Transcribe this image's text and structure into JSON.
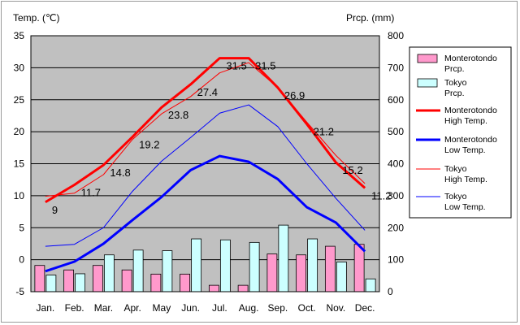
{
  "chart_data": {
    "type": "bar+line",
    "categories": [
      "Jan.",
      "Feb.",
      "Mar.",
      "Apr.",
      "May",
      "Jun.",
      "Jul.",
      "Aug.",
      "Sep.",
      "Oct.",
      "Nov.",
      "Dec."
    ],
    "ylabel_left": "Temp. (℃)",
    "ylabel_right": "Prcp. (mm)",
    "ylim_left": [
      -5,
      35
    ],
    "ylim_right": [
      0,
      800
    ],
    "yticks_left": [
      35,
      30,
      25,
      20,
      15,
      10,
      5,
      0,
      -5
    ],
    "yticks_right": [
      800,
      700,
      600,
      500,
      400,
      300,
      200,
      100,
      0
    ],
    "grid": true,
    "bars": [
      {
        "name": "Monterotondo Prcp.",
        "color": "#ff99cc",
        "values": [
          82,
          68,
          82,
          68,
          55,
          55,
          20,
          20,
          118,
          115,
          142,
          148
        ]
      },
      {
        "name": "Tokyo Prcp.",
        "color": "#ccffff",
        "values": [
          52,
          56,
          115,
          130,
          128,
          165,
          162,
          154,
          208,
          165,
          93,
          40
        ]
      }
    ],
    "lines": [
      {
        "name": "Monterotondo High Temp.",
        "color": "#ff0000",
        "width": 3,
        "values": [
          9,
          11.7,
          14.8,
          19.2,
          23.8,
          27.4,
          31.5,
          31.5,
          26.9,
          21.2,
          15.2,
          11.2
        ]
      },
      {
        "name": "Monterotondo Low Temp.",
        "color": "#0000ff",
        "width": 3,
        "values": [
          -1.8,
          -0.3,
          2.5,
          6.2,
          9.8,
          14,
          16.2,
          15.3,
          12.6,
          8.2,
          5.8,
          1.3
        ]
      },
      {
        "name": "Tokyo High Temp.",
        "color": "#ff0000",
        "width": 1,
        "values": [
          9.9,
          10.4,
          13.3,
          18.8,
          22.8,
          25.5,
          29.2,
          30.8,
          26.9,
          21.5,
          16.3,
          11.9
        ]
      },
      {
        "name": "Tokyo Low Temp.",
        "color": "#0000ff",
        "width": 1,
        "values": [
          2.1,
          2.4,
          5,
          10.7,
          15.4,
          19.1,
          22.9,
          24.2,
          20.8,
          15,
          9.6,
          4.6
        ]
      }
    ],
    "data_labels": {
      "series": "Monterotondo High Temp.",
      "values": [
        "9",
        "11.7",
        "14.8",
        "19.2",
        "23.8",
        "27.4",
        "31.5",
        "31.5",
        "26.9",
        "21.2",
        "15.2",
        "11.2"
      ]
    },
    "legend": {
      "placement": "right",
      "items": [
        {
          "label": "Monterotondo Prcp.",
          "kind": "bar",
          "color": "#ff99cc"
        },
        {
          "label": "Tokyo Prcp.",
          "kind": "bar",
          "color": "#ccffff"
        },
        {
          "label": "Monterotondo High Temp.",
          "kind": "line",
          "color": "#ff0000",
          "width": 3
        },
        {
          "label": "Monterotondo Low Temp.",
          "kind": "line",
          "color": "#0000ff",
          "width": 3
        },
        {
          "label": "Tokyo High Temp.",
          "kind": "line",
          "color": "#ff0000",
          "width": 1
        },
        {
          "label": "Tokyo Low Temp.",
          "kind": "line",
          "color": "#0000ff",
          "width": 1
        }
      ]
    },
    "plot_background": "#c0c0c0"
  }
}
